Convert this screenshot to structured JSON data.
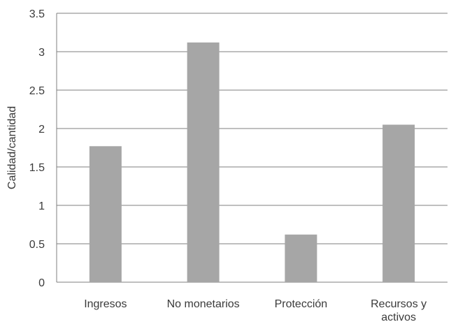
{
  "chart_data": {
    "type": "bar",
    "categories": [
      [
        "Ingresos"
      ],
      [
        "No monetarios"
      ],
      [
        "Protección"
      ],
      [
        "Recursos y",
        "activos"
      ]
    ],
    "values": [
      1.77,
      3.12,
      0.62,
      2.05
    ],
    "ylabel": "Calidad/cantidad",
    "ylim": [
      0,
      3.5
    ],
    "yticks": [
      "0",
      "0.5",
      "1",
      "1.5",
      "2",
      "2.5",
      "3",
      "3.5"
    ],
    "bar_color": "#a6a6a6",
    "grid": true
  }
}
